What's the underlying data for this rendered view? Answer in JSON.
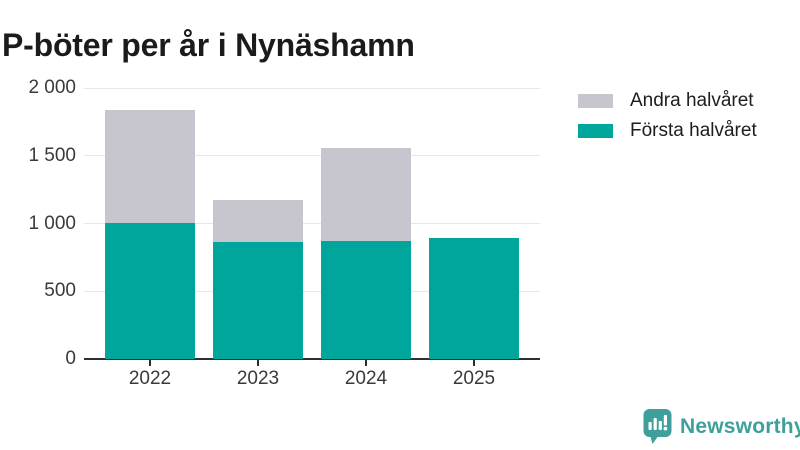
{
  "title": "P-böter per år i Nynäshamn",
  "chart_data": {
    "type": "bar",
    "stacked": true,
    "title": "P-böter per år i Nynäshamn",
    "xlabel": "",
    "ylabel": "",
    "categories": [
      "2022",
      "2023",
      "2024",
      "2025"
    ],
    "series": [
      {
        "name": "Första halvåret",
        "key": "forsta-halvaret",
        "color": "#00a69b",
        "values": [
          1005,
          860,
          870,
          895
        ]
      },
      {
        "name": "Andra halvåret",
        "key": "andra-halvaret",
        "color": "#c7c5cd",
        "values": [
          830,
          315,
          685,
          0
        ]
      }
    ],
    "totals": [
      1835,
      1175,
      1555,
      895
    ],
    "ylim": [
      0,
      2000
    ],
    "yticks": [
      {
        "value": 0,
        "label": "0"
      },
      {
        "value": 500,
        "label": "500"
      },
      {
        "value": 1000,
        "label": "1 000"
      },
      {
        "value": 1500,
        "label": "1 500"
      },
      {
        "value": 2000,
        "label": "2 000"
      }
    ],
    "grid": true,
    "legend_position": "top-right",
    "legend": [
      {
        "label": "Andra halvåret",
        "color": "#c7c5cd"
      },
      {
        "label": "Första halvåret",
        "color": "#00a69b"
      }
    ]
  },
  "colors": {
    "first_half": "#00a69b",
    "second_half": "#c7c5cd",
    "gridline": "#e8e7ea",
    "axis": "#2f2f2f",
    "brand_teal": "#3fa09b"
  },
  "logo": {
    "text": "Newsworthy",
    "icon": "bar-chart-speech-bubble-icon"
  }
}
